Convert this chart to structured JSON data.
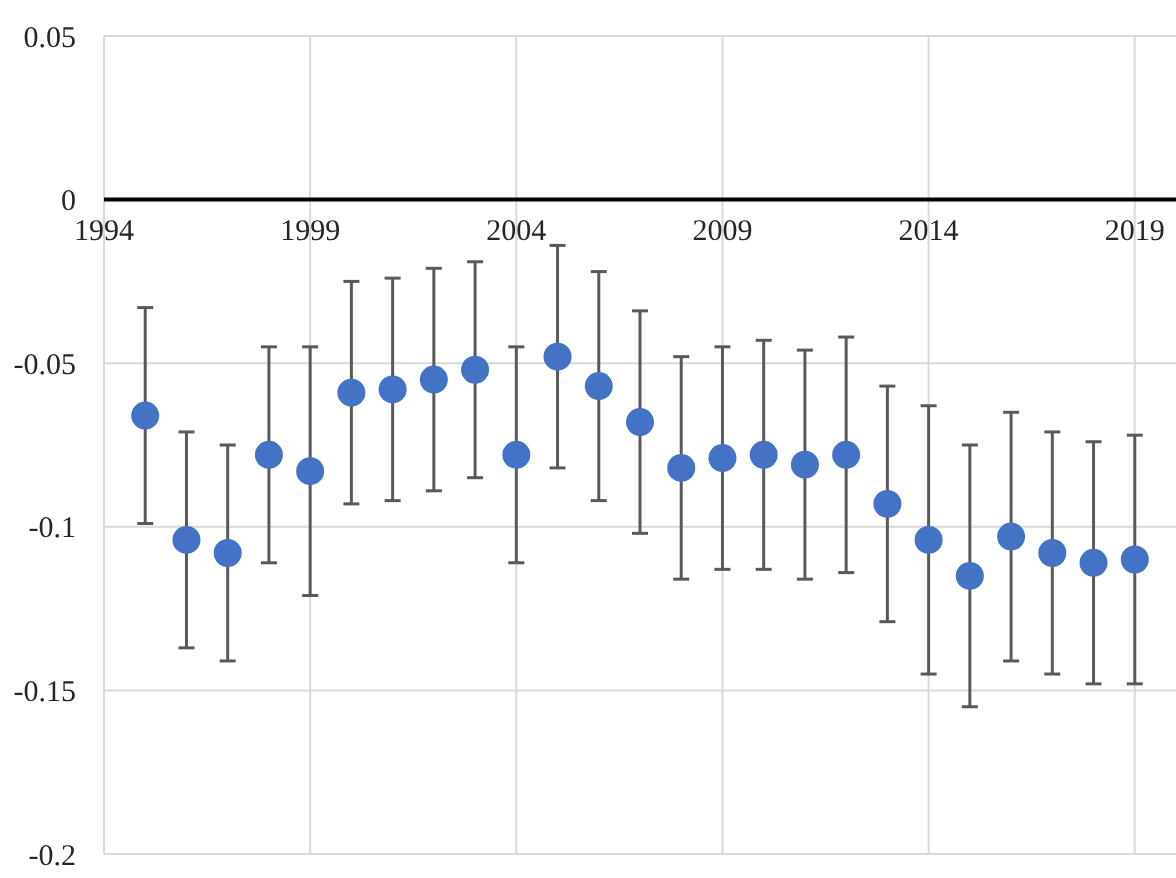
{
  "chart_data": {
    "type": "scatter",
    "x": [
      1995,
      1996,
      1997,
      1998,
      1999,
      2000,
      2001,
      2002,
      2003,
      2004,
      2005,
      2006,
      2007,
      2008,
      2009,
      2010,
      2011,
      2012,
      2013,
      2014,
      2015,
      2016,
      2017,
      2018,
      2019
    ],
    "values": [
      -0.066,
      -0.104,
      -0.108,
      -0.078,
      -0.083,
      -0.059,
      -0.058,
      -0.055,
      -0.052,
      -0.078,
      -0.048,
      -0.057,
      -0.068,
      -0.082,
      -0.079,
      -0.078,
      -0.081,
      -0.078,
      -0.093,
      -0.104,
      -0.115,
      -0.103,
      -0.108,
      -0.111,
      -0.11
    ],
    "errors": [
      0.033,
      0.033,
      0.033,
      0.033,
      0.038,
      0.034,
      0.034,
      0.034,
      0.033,
      0.033,
      0.034,
      0.035,
      0.034,
      0.034,
      0.034,
      0.035,
      0.035,
      0.036,
      0.036,
      0.041,
      0.04,
      0.038,
      0.037,
      0.037,
      0.038
    ],
    "color": "#4472c4",
    "marker": "circle",
    "xlim": [
      1994,
      2020
    ],
    "xticks": [
      1994,
      1999,
      2004,
      2009,
      2014,
      2019
    ],
    "ylim": [
      -0.2,
      0.05
    ],
    "yticks": [
      0.05,
      0,
      -0.05,
      -0.1,
      -0.15,
      -0.2
    ],
    "grid": true
  }
}
